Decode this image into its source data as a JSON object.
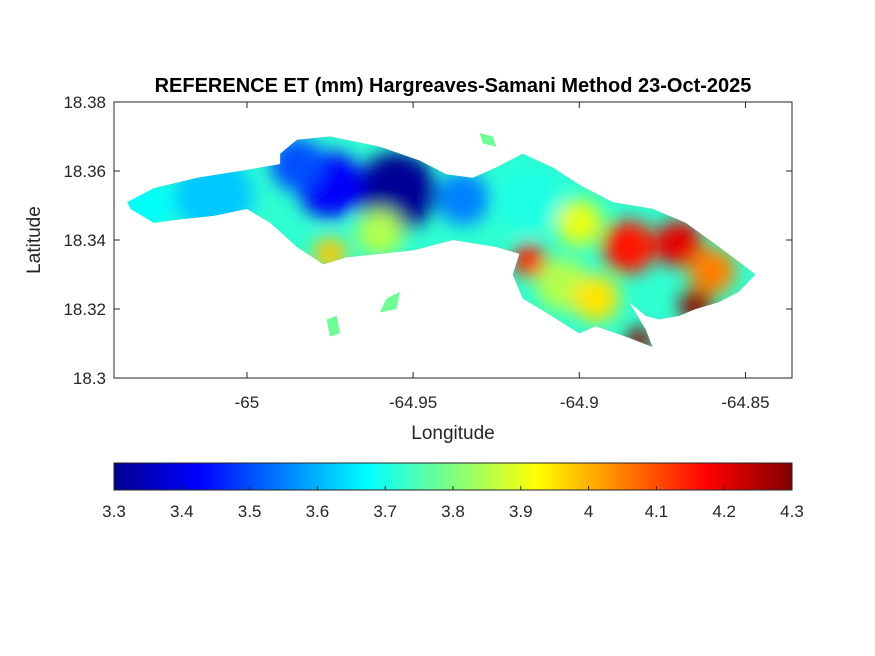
{
  "chart_data": {
    "type": "heatmap",
    "title": "REFERENCE ET (mm) Hargreaves-Samani Method  23-Oct-2025",
    "xlabel": "Longitude",
    "ylabel": "Latitude",
    "xlim": [
      -65.04,
      -64.836
    ],
    "ylim": [
      18.3,
      18.38
    ],
    "xticks": [
      -65,
      -64.95,
      -64.9,
      -64.85
    ],
    "xtick_labels": [
      "-65",
      "-64.95",
      "-64.9",
      "-64.85"
    ],
    "yticks": [
      18.3,
      18.32,
      18.34,
      18.36,
      18.38
    ],
    "ytick_labels": [
      "18.3",
      "18.32",
      "18.34",
      "18.36",
      "18.38"
    ],
    "grid": false,
    "colormap": "jet",
    "colorbar": {
      "orientation": "horizontal",
      "location": "bottom",
      "min": 3.3,
      "max": 4.3,
      "ticks": [
        3.3,
        3.4,
        3.5,
        3.6,
        3.7,
        3.8,
        3.9,
        4,
        4.1,
        4.2,
        4.3
      ],
      "tick_labels": [
        "3.3",
        "3.4",
        "3.5",
        "3.6",
        "3.7",
        "3.8",
        "3.9",
        "4",
        "4.1",
        "4.2",
        "4.3"
      ]
    },
    "island_outline": [
      [
        -65.036,
        18.351
      ],
      [
        -65.028,
        18.355
      ],
      [
        -65.015,
        18.358
      ],
      [
        -65.002,
        18.36
      ],
      [
        -64.99,
        18.362
      ],
      [
        -64.99,
        18.365
      ],
      [
        -64.985,
        18.369
      ],
      [
        -64.975,
        18.37
      ],
      [
        -64.96,
        18.367
      ],
      [
        -64.948,
        18.363
      ],
      [
        -64.94,
        18.359
      ],
      [
        -64.932,
        18.358
      ],
      [
        -64.925,
        18.361
      ],
      [
        -64.917,
        18.365
      ],
      [
        -64.908,
        18.361
      ],
      [
        -64.9,
        18.356
      ],
      [
        -64.89,
        18.351
      ],
      [
        -64.878,
        18.349
      ],
      [
        -64.868,
        18.345
      ],
      [
        -64.858,
        18.338
      ],
      [
        -64.851,
        18.333
      ],
      [
        -64.847,
        18.33
      ],
      [
        -64.852,
        18.325
      ],
      [
        -64.858,
        18.322
      ],
      [
        -64.865,
        18.32
      ],
      [
        -64.87,
        18.318
      ],
      [
        -64.876,
        18.317
      ],
      [
        -64.88,
        18.318
      ],
      [
        -64.885,
        18.322
      ],
      [
        -64.88,
        18.314
      ],
      [
        -64.878,
        18.309
      ],
      [
        -64.886,
        18.312
      ],
      [
        -64.895,
        18.315
      ],
      [
        -64.9,
        18.313
      ],
      [
        -64.91,
        18.319
      ],
      [
        -64.917,
        18.323
      ],
      [
        -64.92,
        18.33
      ],
      [
        -64.918,
        18.336
      ],
      [
        -64.925,
        18.338
      ],
      [
        -64.938,
        18.34
      ],
      [
        -64.95,
        18.337
      ],
      [
        -64.96,
        18.336
      ],
      [
        -64.97,
        18.335
      ],
      [
        -64.977,
        18.333
      ],
      [
        -64.985,
        18.338
      ],
      [
        -64.993,
        18.345
      ],
      [
        -65.0,
        18.349
      ],
      [
        -65.01,
        18.347
      ],
      [
        -65.02,
        18.346
      ],
      [
        -65.028,
        18.345
      ],
      [
        -65.035,
        18.349
      ]
    ],
    "islets": [
      [
        [
          -64.96,
          18.319
        ],
        [
          -64.955,
          18.32
        ],
        [
          -64.954,
          18.325
        ],
        [
          -64.958,
          18.323
        ]
      ],
      [
        [
          -64.975,
          18.312
        ],
        [
          -64.972,
          18.313
        ],
        [
          -64.973,
          18.318
        ],
        [
          -64.976,
          18.317
        ]
      ],
      [
        [
          -64.93,
          18.371
        ],
        [
          -64.926,
          18.37
        ],
        [
          -64.925,
          18.367
        ],
        [
          -64.929,
          18.368
        ]
      ]
    ],
    "hotspots": [
      {
        "lon": -64.955,
        "lat": 18.354,
        "value": 3.32,
        "radius": 0.012
      },
      {
        "lon": -64.975,
        "lat": 18.356,
        "value": 3.42,
        "radius": 0.01
      },
      {
        "lon": -64.985,
        "lat": 18.362,
        "value": 3.5,
        "radius": 0.008
      },
      {
        "lon": -65.01,
        "lat": 18.353,
        "value": 3.62,
        "radius": 0.012
      },
      {
        "lon": -65.03,
        "lat": 18.35,
        "value": 3.68,
        "radius": 0.008
      },
      {
        "lon": -64.935,
        "lat": 18.352,
        "value": 3.55,
        "radius": 0.008
      },
      {
        "lon": -64.915,
        "lat": 18.352,
        "value": 3.7,
        "radius": 0.01
      },
      {
        "lon": -64.96,
        "lat": 18.342,
        "value": 3.85,
        "radius": 0.007
      },
      {
        "lon": -64.975,
        "lat": 18.336,
        "value": 3.98,
        "radius": 0.005
      },
      {
        "lon": -64.915,
        "lat": 18.334,
        "value": 4.15,
        "radius": 0.005
      },
      {
        "lon": -64.905,
        "lat": 18.327,
        "value": 3.85,
        "radius": 0.008
      },
      {
        "lon": -64.885,
        "lat": 18.338,
        "value": 4.15,
        "radius": 0.008
      },
      {
        "lon": -64.87,
        "lat": 18.339,
        "value": 4.2,
        "radius": 0.007
      },
      {
        "lon": -64.86,
        "lat": 18.331,
        "value": 4.05,
        "radius": 0.007
      },
      {
        "lon": -64.865,
        "lat": 18.321,
        "value": 4.28,
        "radius": 0.005
      },
      {
        "lon": -64.882,
        "lat": 18.311,
        "value": 4.28,
        "radius": 0.004
      },
      {
        "lon": -64.895,
        "lat": 18.323,
        "value": 3.95,
        "radius": 0.007
      },
      {
        "lon": -64.9,
        "lat": 18.345,
        "value": 3.9,
        "radius": 0.007
      }
    ]
  }
}
